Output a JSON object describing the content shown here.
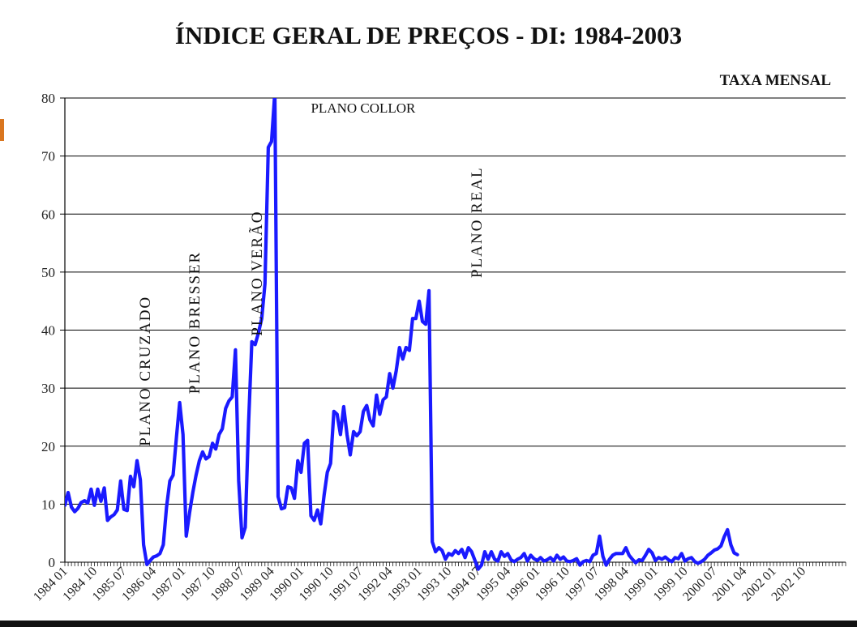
{
  "chart_data": {
    "type": "line",
    "title": "ÍNDICE GERAL DE PREÇOS - DI: 1984-2003",
    "subtitle": "TAXA MENSAL",
    "ylim": [
      0,
      80
    ],
    "yticks": [
      0,
      10,
      20,
      30,
      40,
      50,
      60,
      70,
      80
    ],
    "grid": true,
    "xlim_month_index": [
      0,
      238
    ],
    "xtick_labels": [
      "1984 01",
      "1984 10",
      "1985 07",
      "1986 04",
      "1987 01",
      "1987 10",
      "1988 07",
      "1989 04",
      "1990 01",
      "1990 10",
      "1991 07",
      "1992 04",
      "1993 01",
      "1993 10",
      "1994 07",
      "1995 04",
      "1996 01",
      "1996 10",
      "1997 07",
      "1998 04",
      "1999 01",
      "1999 10",
      "2000 07",
      "2001 04",
      "2002 01",
      "2002 10"
    ],
    "xtick_month_index": [
      0,
      9,
      18,
      27,
      36,
      45,
      54,
      63,
      72,
      81,
      90,
      99,
      108,
      117,
      126,
      135,
      144,
      153,
      162,
      171,
      180,
      189,
      198,
      207,
      216,
      225
    ],
    "line_color": "#1a1aff",
    "annotations": [
      {
        "text": "PLANO CRUZADO",
        "month_index": 26,
        "value": 20,
        "orientation": "vertical"
      },
      {
        "text": "PLANO BRESSER",
        "month_index": 41,
        "value": 29,
        "orientation": "vertical"
      },
      {
        "text": "PLANO VERÃO",
        "month_index": 60,
        "value": 39,
        "orientation": "vertical"
      },
      {
        "text": "PLANO COLLOR",
        "month_index": 75,
        "value": 77.5,
        "orientation": "horizontal"
      },
      {
        "text": "PLANO REAL",
        "month_index": 127,
        "value": 49,
        "orientation": "vertical"
      }
    ],
    "series": [
      {
        "points": [
          [
            0,
            9.8
          ],
          [
            1,
            12
          ],
          [
            2,
            9.5
          ],
          [
            3,
            8.7
          ],
          [
            4,
            9.3
          ],
          [
            5,
            10.3
          ],
          [
            6,
            10.6
          ],
          [
            7,
            10.2
          ],
          [
            8,
            12.6
          ],
          [
            9,
            9.8
          ],
          [
            10,
            12.6
          ],
          [
            11,
            10.5
          ],
          [
            12,
            12.8
          ],
          [
            13,
            7.2
          ],
          [
            14,
            7.8
          ],
          [
            15,
            8.2
          ],
          [
            16,
            9
          ],
          [
            17,
            14
          ],
          [
            18,
            9.1
          ],
          [
            19,
            8.9
          ],
          [
            20,
            14.8
          ],
          [
            21,
            13
          ],
          [
            22,
            17.5
          ],
          [
            23,
            14.2
          ],
          [
            24,
            3
          ],
          [
            25,
            -0.4
          ],
          [
            26,
            0.3
          ],
          [
            27,
            0.9
          ],
          [
            28,
            1.1
          ],
          [
            29,
            1.5
          ],
          [
            30,
            3
          ],
          [
            31,
            9.5
          ],
          [
            32,
            14
          ],
          [
            33,
            15
          ],
          [
            34,
            21.5
          ],
          [
            35,
            27.5
          ],
          [
            36,
            22
          ],
          [
            37,
            4.5
          ],
          [
            38,
            8.5
          ],
          [
            39,
            12
          ],
          [
            40,
            15
          ],
          [
            41,
            17.5
          ],
          [
            42,
            19
          ],
          [
            43,
            17.8
          ],
          [
            44,
            18.2
          ],
          [
            45,
            20.5
          ],
          [
            46,
            19.5
          ],
          [
            47,
            22
          ],
          [
            48,
            23
          ],
          [
            49,
            26.5
          ],
          [
            50,
            27.8
          ],
          [
            51,
            28.5
          ],
          [
            52,
            36.6
          ],
          [
            53,
            14
          ],
          [
            54,
            4.2
          ],
          [
            55,
            6
          ],
          [
            56,
            24
          ],
          [
            57,
            38
          ],
          [
            58,
            37.5
          ],
          [
            59,
            39.5
          ],
          [
            60,
            42
          ],
          [
            61,
            48
          ],
          [
            62,
            71.5
          ],
          [
            63,
            72.5
          ],
          [
            64,
            81
          ],
          [
            65,
            11.3
          ],
          [
            66,
            9.2
          ],
          [
            67,
            9.4
          ],
          [
            68,
            13
          ],
          [
            69,
            12.8
          ],
          [
            70,
            11
          ],
          [
            71,
            17.5
          ],
          [
            72,
            15.5
          ],
          [
            73,
            20.5
          ],
          [
            74,
            21
          ],
          [
            75,
            8
          ],
          [
            76,
            7.2
          ],
          [
            77,
            9
          ],
          [
            78,
            6.6
          ],
          [
            79,
            11.5
          ],
          [
            80,
            15.5
          ],
          [
            81,
            17
          ],
          [
            82,
            26
          ],
          [
            83,
            25.5
          ],
          [
            84,
            22
          ],
          [
            85,
            26.8
          ],
          [
            86,
            22
          ],
          [
            87,
            18.5
          ],
          [
            88,
            22.5
          ],
          [
            89,
            21.8
          ],
          [
            90,
            22.5
          ],
          [
            91,
            26
          ],
          [
            92,
            27
          ],
          [
            93,
            24.5
          ],
          [
            94,
            23.5
          ],
          [
            95,
            28.8
          ],
          [
            96,
            25.5
          ],
          [
            97,
            28
          ],
          [
            98,
            28.5
          ],
          [
            99,
            32.5
          ],
          [
            100,
            30
          ],
          [
            101,
            33
          ],
          [
            102,
            37
          ],
          [
            103,
            35
          ],
          [
            104,
            37
          ],
          [
            105,
            36.5
          ],
          [
            106,
            42
          ],
          [
            107,
            42
          ],
          [
            108,
            45
          ],
          [
            109,
            41.5
          ],
          [
            110,
            41
          ],
          [
            111,
            46.8
          ],
          [
            112,
            3.5
          ],
          [
            113,
            1.8
          ],
          [
            114,
            2.5
          ],
          [
            115,
            2
          ],
          [
            116,
            0.5
          ],
          [
            117,
            1.5
          ],
          [
            118,
            1.2
          ],
          [
            119,
            2
          ],
          [
            120,
            1.5
          ],
          [
            121,
            2.2
          ],
          [
            122,
            0.8
          ],
          [
            123,
            2.5
          ],
          [
            124,
            1.8
          ],
          [
            125,
            0.3
          ],
          [
            126,
            -1.2
          ],
          [
            127,
            -0.5
          ],
          [
            128,
            1.8
          ],
          [
            129,
            0.5
          ],
          [
            130,
            1.8
          ],
          [
            131,
            0.5
          ],
          [
            132,
            0.2
          ],
          [
            133,
            1.8
          ],
          [
            134,
            1
          ],
          [
            135,
            1.5
          ],
          [
            136,
            0.4
          ],
          [
            137,
            0.1
          ],
          [
            138,
            0.5
          ],
          [
            139,
            0.8
          ],
          [
            140,
            1.5
          ],
          [
            141,
            0.2
          ],
          [
            142,
            1.2
          ],
          [
            143,
            0.6
          ],
          [
            144,
            0.3
          ],
          [
            145,
            0.8
          ],
          [
            146,
            0.2
          ],
          [
            147,
            0.4
          ],
          [
            148,
            0.8
          ],
          [
            149,
            0.2
          ],
          [
            150,
            1.2
          ],
          [
            151,
            0.5
          ],
          [
            152,
            0.9
          ],
          [
            153,
            0.2
          ],
          [
            154,
            0.1
          ],
          [
            155,
            0.3
          ],
          [
            156,
            0.6
          ],
          [
            157,
            -0.5
          ],
          [
            158,
            0.1
          ],
          [
            159,
            0.3
          ],
          [
            160,
            0.1
          ],
          [
            161,
            1.2
          ],
          [
            162,
            1.5
          ],
          [
            163,
            4.5
          ],
          [
            164,
            1
          ],
          [
            165,
            -0.5
          ],
          [
            166,
            0.5
          ],
          [
            167,
            1.2
          ],
          [
            168,
            1.5
          ],
          [
            169,
            1.5
          ],
          [
            170,
            1.5
          ],
          [
            171,
            2.5
          ],
          [
            172,
            1.2
          ],
          [
            173,
            0.5
          ],
          [
            174,
            -0.1
          ],
          [
            175,
            0.4
          ],
          [
            176,
            0.3
          ],
          [
            177,
            1.2
          ],
          [
            178,
            2.2
          ],
          [
            179,
            1.6
          ],
          [
            180,
            0.3
          ],
          [
            181,
            0.8
          ],
          [
            182,
            0.5
          ],
          [
            183,
            0.9
          ],
          [
            184,
            0.4
          ],
          [
            185,
            0.1
          ],
          [
            186,
            0.8
          ],
          [
            187,
            0.6
          ],
          [
            188,
            1.5
          ],
          [
            189,
            0.2
          ],
          [
            190,
            0.6
          ],
          [
            191,
            0.8
          ],
          [
            192,
            0.1
          ],
          [
            193,
            -0.2
          ],
          [
            194,
            0.1
          ],
          [
            195,
            0.5
          ],
          [
            196,
            1.2
          ],
          [
            197,
            1.6
          ],
          [
            198,
            2.1
          ],
          [
            199,
            2.3
          ],
          [
            200,
            2.8
          ],
          [
            201,
            4.4
          ],
          [
            202,
            5.6
          ],
          [
            203,
            3
          ],
          [
            204,
            1.6
          ],
          [
            205,
            1.3
          ]
        ]
      }
    ]
  }
}
